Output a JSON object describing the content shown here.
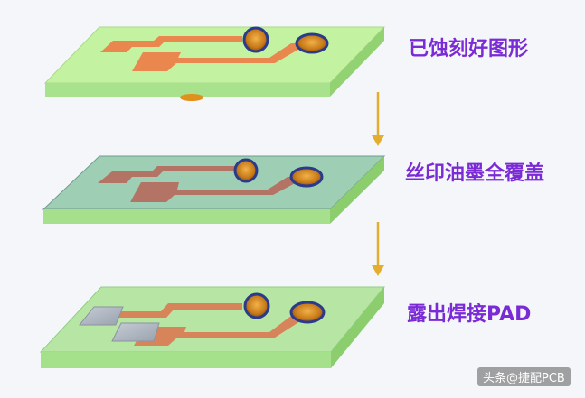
{
  "steps": [
    {
      "label": "已蚀刻好图形",
      "stage": "etched",
      "board_color": "#c3f2a0",
      "trace_color": "#e9874f"
    },
    {
      "label": "丝印油墨全覆盖",
      "stage": "solder-mask-covered",
      "board_color": "#9ecfb4",
      "trace_color": "#b37466"
    },
    {
      "label": "露出焊接PAD",
      "stage": "pads-exposed",
      "board_color": "#b7e6a4",
      "trace_color": "#d8845a"
    }
  ],
  "arrow_color": "#e3ae2e",
  "watermark": "头条@捷配PCB"
}
